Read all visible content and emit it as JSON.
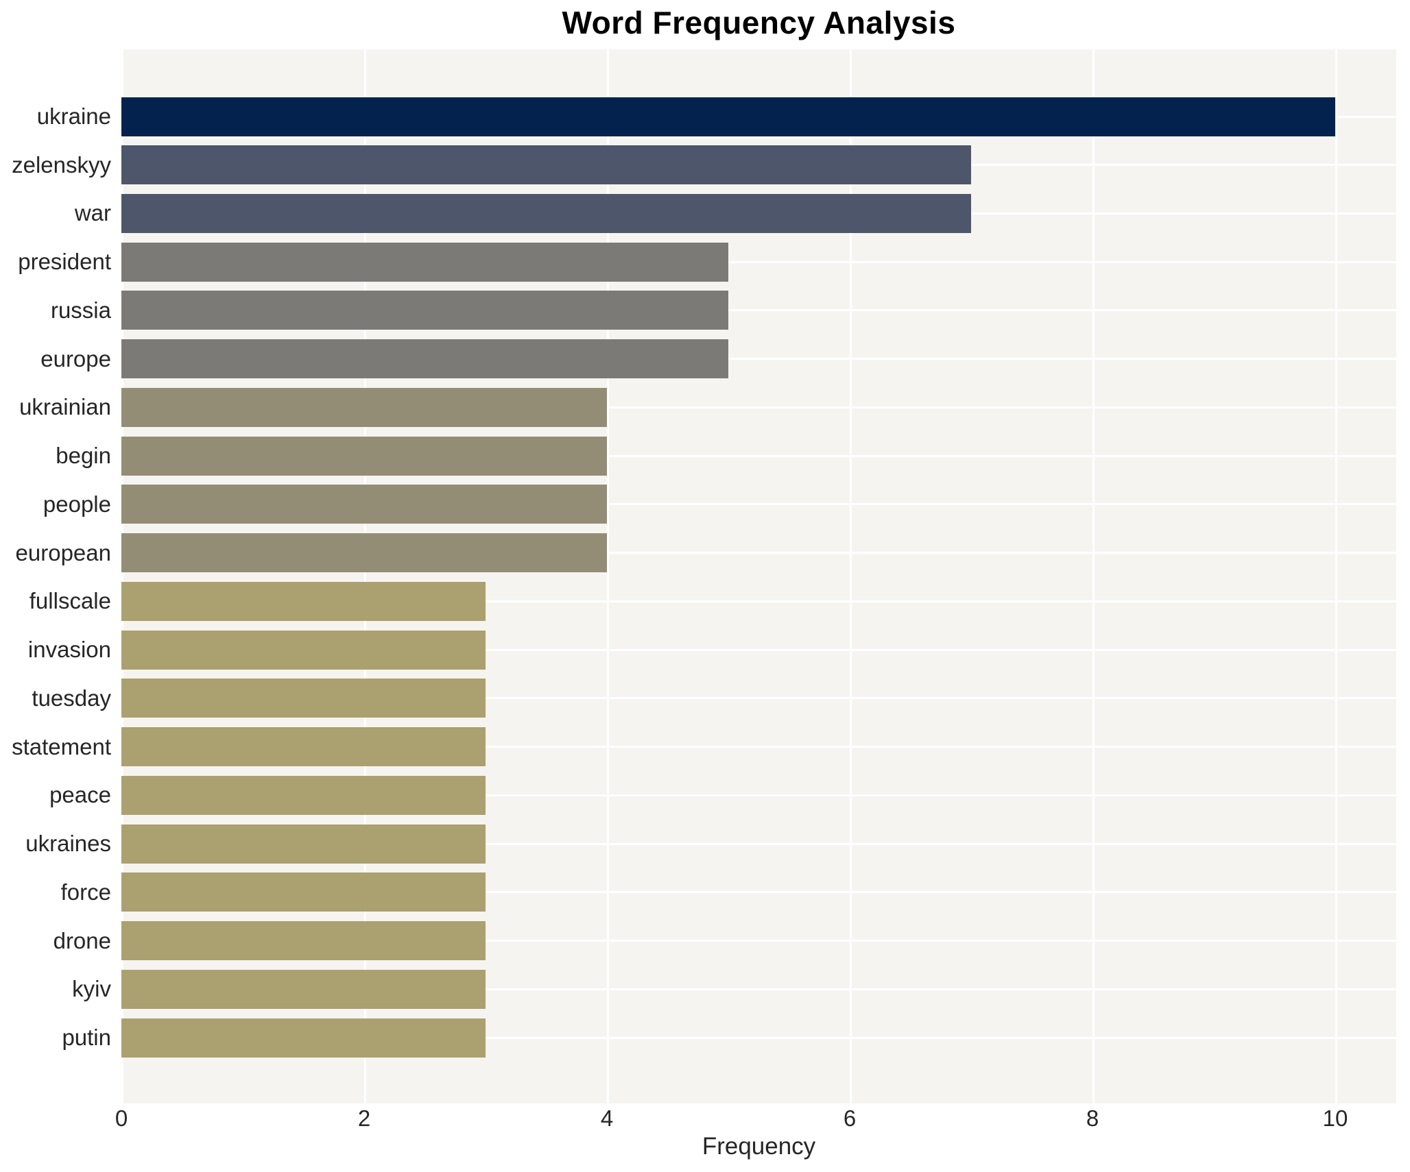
{
  "title": "Word Frequency Analysis",
  "chart_data": {
    "type": "bar",
    "orientation": "horizontal",
    "title": "Word Frequency Analysis",
    "xlabel": "Frequency",
    "ylabel": "",
    "categories": [
      "ukraine",
      "zelenskyy",
      "war",
      "president",
      "russia",
      "europe",
      "ukrainian",
      "begin",
      "people",
      "european",
      "fullscale",
      "invasion",
      "tuesday",
      "statement",
      "peace",
      "ukraines",
      "force",
      "drone",
      "kyiv",
      "putin"
    ],
    "values": [
      10,
      7,
      7,
      5,
      5,
      5,
      4,
      4,
      4,
      4,
      3,
      3,
      3,
      3,
      3,
      3,
      3,
      3,
      3,
      3
    ],
    "x_ticks": [
      0,
      2,
      4,
      6,
      8,
      10
    ],
    "xlim": [
      0,
      10.5
    ],
    "grid": true,
    "legend": "none",
    "plot_background": "#f5f4f1",
    "grid_color": "#ffffff",
    "color_by_value": {
      "10": "#03234e",
      "7": "#4e566b",
      "5": "#7b7a76",
      "4": "#948d75",
      "3": "#aba06f"
    }
  }
}
